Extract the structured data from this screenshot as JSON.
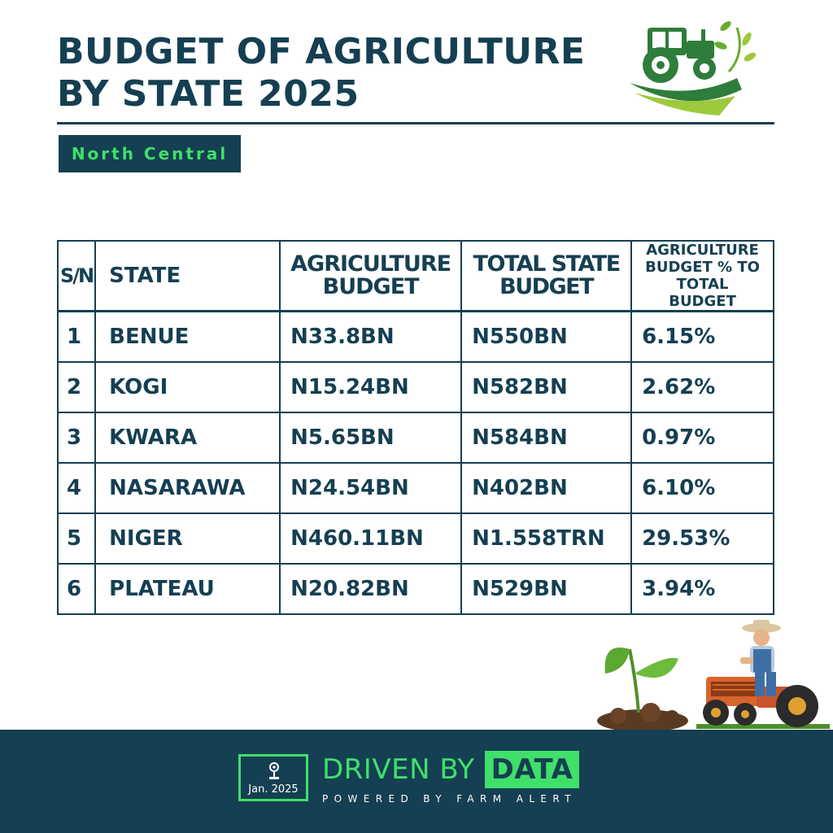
{
  "header": {
    "title_line1": "BUDGET OF AGRICULTURE",
    "title_line2": "BY STATE 2025",
    "region": "North Central"
  },
  "table": {
    "columns": [
      "S/N",
      "STATE",
      "AGRICULTURE BUDGET",
      "TOTAL STATE BUDGET",
      "AGRICULTURE BUDGET % TO TOTAL BUDGET"
    ],
    "rows": [
      {
        "sn": "1",
        "state": "BENUE",
        "agri": "N33.8BN",
        "total": "N550BN",
        "pct": "6.15%"
      },
      {
        "sn": "2",
        "state": "KOGI",
        "agri": "N15.24BN",
        "total": "N582BN",
        "pct": "2.62%"
      },
      {
        "sn": "3",
        "state": "KWARA",
        "agri": "N5.65BN",
        "total": "N584BN",
        "pct": "0.97%"
      },
      {
        "sn": "4",
        "state": "NASARAWA",
        "agri": "N24.54BN",
        "total": "N402BN",
        "pct": "6.10%"
      },
      {
        "sn": "5",
        "state": "NIGER",
        "agri": "N460.11BN",
        "total": "N1.558TRN",
        "pct": "29.53%"
      },
      {
        "sn": "6",
        "state": "PLATEAU",
        "agri": "N20.82BN",
        "total": "N529BN",
        "pct": "3.94%"
      }
    ]
  },
  "footer": {
    "badge_date": "Jan. 2025",
    "brand_text": "DRIVEN BY",
    "brand_box": "DATA",
    "powered_by": "POWERED BY FARM ALERT"
  },
  "colors": {
    "navy": "#153f52",
    "accent_green": "#3fe06a",
    "leaf_green": "#5aa832"
  },
  "icons": {
    "top_logo": "tractor-logo-icon",
    "badge": "location-pin-icon",
    "illustration": "farmer-on-tractor-with-sprout-icon"
  }
}
